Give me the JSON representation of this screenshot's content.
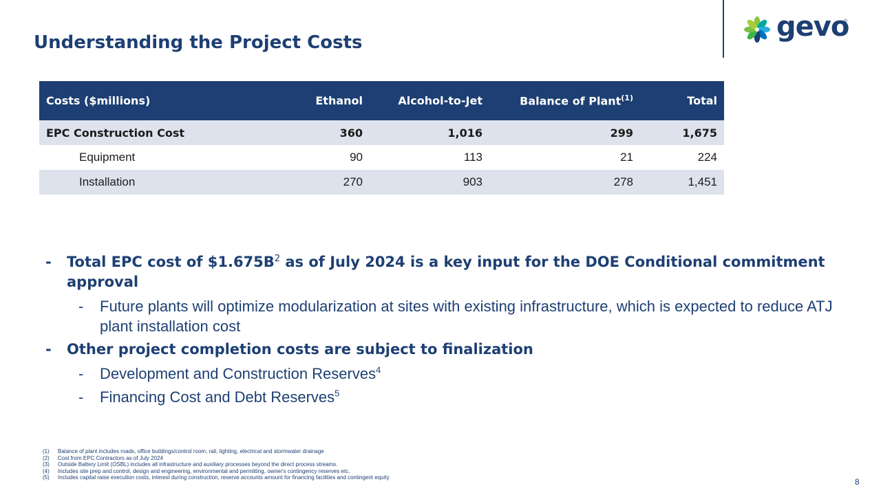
{
  "slide": {
    "title": "Understanding the Project Costs",
    "page_number": "8"
  },
  "logo": {
    "text": "gevo",
    "mark": "®"
  },
  "table": {
    "headers": [
      "Costs ($millions)",
      "Ethanol",
      "Alcohol-to-Jet",
      "Balance of Plant",
      "Total"
    ],
    "header_sup": "(1)",
    "rows": [
      {
        "label": "EPC Construction Cost",
        "values": [
          "360",
          "1,016",
          "299",
          "1,675"
        ]
      },
      {
        "label": "Equipment",
        "values": [
          "90",
          "113",
          "21",
          "224"
        ]
      },
      {
        "label": "Installation",
        "values": [
          "270",
          "903",
          "278",
          "1,451"
        ]
      }
    ]
  },
  "bullets": {
    "b1": {
      "dash": "-",
      "text_a": "Total EPC cost of $1.675B",
      "sup": "2",
      "text_b": " as of July 2024 is a key input for the DOE Conditional commitment approval"
    },
    "b1_sub": {
      "dash": "-",
      "text": "Future plants will optimize modularization at sites with existing infrastructure, which is expected to reduce ATJ plant installation cost"
    },
    "b2": {
      "dash": "-",
      "text": "Other project completion costs are subject to finalization"
    },
    "b2_sub1": {
      "dash": "-",
      "text": "Development and Construction Reserves",
      "sup": "4"
    },
    "b2_sub2": {
      "dash": "-",
      "text": "Financing Cost and Debt Reserves",
      "sup": "5"
    }
  },
  "footnotes": [
    {
      "num": "(1)",
      "text": "Balance of plant includes roads, office buildings/control room, rail, lighting, electrical and stormwater drainage"
    },
    {
      "num": "(2)",
      "text": "Cost from EPC Contractors as of July 2024"
    },
    {
      "num": "(3)",
      "text": "Outside Battery Limit (OSBL) includes all infrastructure and auxiliary processes beyond the direct process streams."
    },
    {
      "num": "(4)",
      "text": "Includes site prep and control, design and engineering, environmental and permitting, owner's contingency reserves etc."
    },
    {
      "num": "(5)",
      "text": "Includes capital raise execution costs, interest during construction, reserve accounts amount for financing facilities and contingent equity"
    }
  ],
  "colors": {
    "brand_navy": "#1d3f73",
    "row_shade": "#dde2ec"
  }
}
